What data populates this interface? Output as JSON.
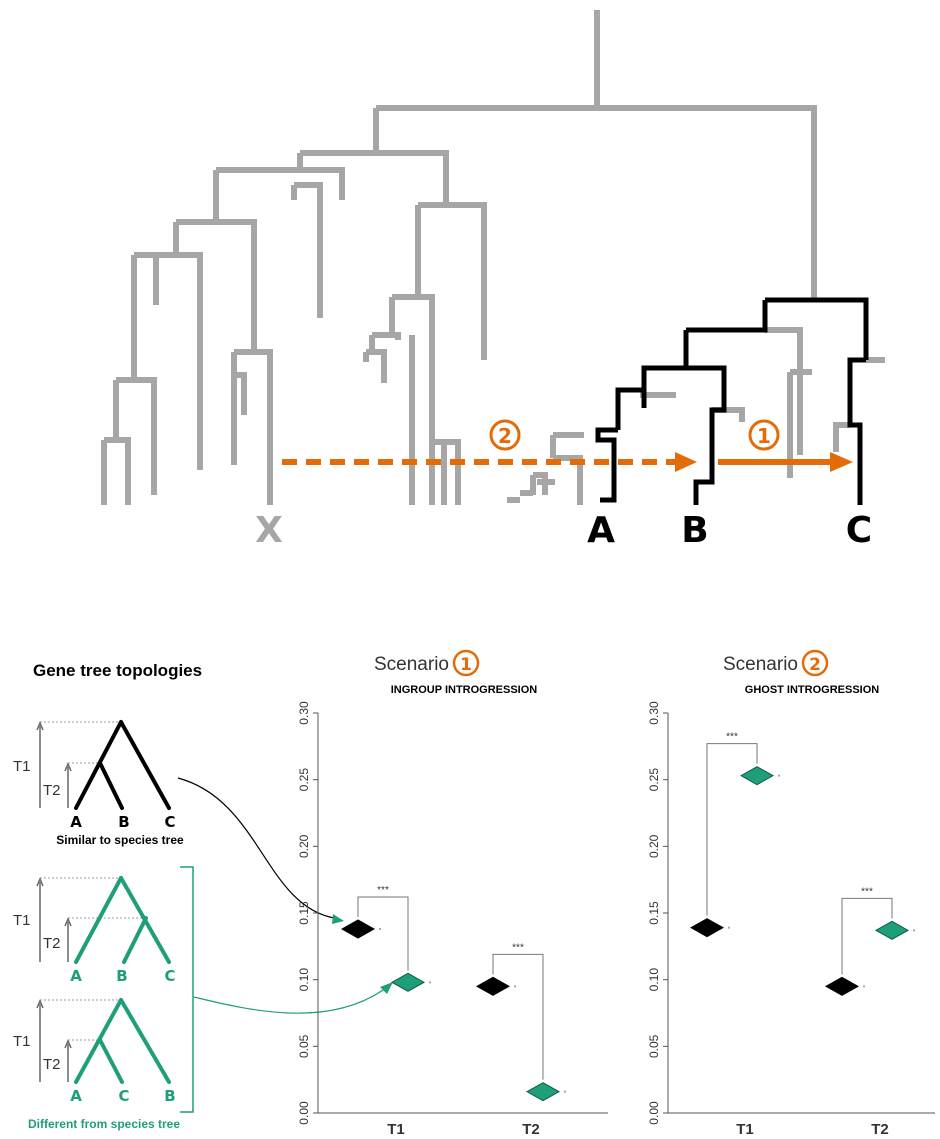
{
  "colors": {
    "grey": "#a6a6a6",
    "black": "#000000",
    "orange": "#e36c09",
    "green": "#1f9e7a",
    "axis": "#555555"
  },
  "species_tree": {
    "leaf_labels": {
      "x": "X",
      "a": "A",
      "b": "B",
      "c": "C"
    },
    "scenario_markers": {
      "one": "1",
      "two": "2"
    }
  },
  "gene_trees": {
    "heading": "Gene tree topologies",
    "time_labels": {
      "t1": "T1",
      "t2": "T2"
    },
    "similar": {
      "leaves": [
        "A",
        "B",
        "C"
      ],
      "caption": "Similar to species tree"
    },
    "different_1": {
      "leaves": [
        "A",
        "B",
        "C"
      ]
    },
    "different_2": {
      "leaves": [
        "A",
        "C",
        "B"
      ]
    },
    "different_caption": "Different from species tree"
  },
  "chart_data": [
    {
      "type": "scatter",
      "title": "Scenario",
      "title_marker": "1",
      "subtitle": "Ingroup introgression",
      "categories": [
        "T1",
        "T2"
      ],
      "ylim": [
        0,
        0.3
      ],
      "yticks": [
        "0.00",
        "0.05",
        "0.10",
        "0.15",
        "0.20",
        "0.25",
        "0.30"
      ],
      "series": [
        {
          "color": "#000000",
          "values": [
            0.138,
            0.095
          ]
        },
        {
          "color": "#1f9e7a",
          "values": [
            0.098,
            0.016
          ]
        }
      ],
      "significance": [
        "***",
        "***"
      ]
    },
    {
      "type": "scatter",
      "title": "Scenario",
      "title_marker": "2",
      "subtitle": "Ghost introgression",
      "categories": [
        "T1",
        "T2"
      ],
      "ylim": [
        0,
        0.3
      ],
      "yticks": [
        "0.00",
        "0.05",
        "0.10",
        "0.15",
        "0.20",
        "0.25",
        "0.30"
      ],
      "series": [
        {
          "color": "#000000",
          "values": [
            0.139,
            0.095
          ]
        },
        {
          "color": "#1f9e7a",
          "values": [
            0.253,
            0.137
          ]
        }
      ],
      "significance": [
        "***",
        "***"
      ]
    }
  ]
}
